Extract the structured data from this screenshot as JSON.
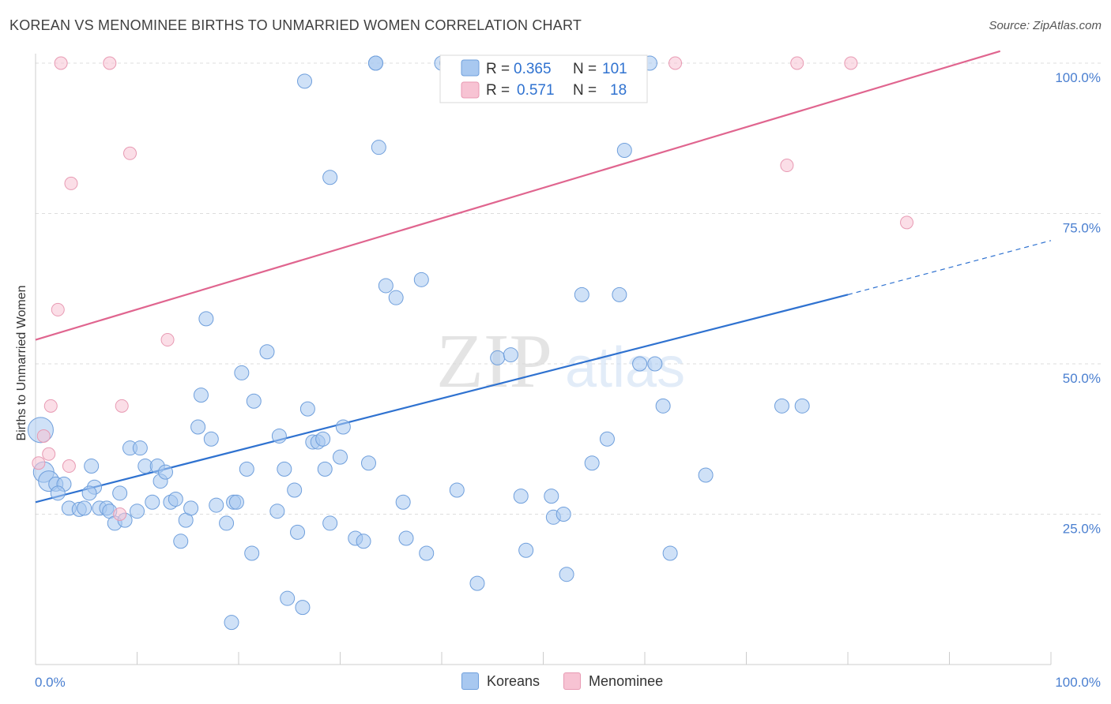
{
  "header": {
    "title": "KOREAN VS MENOMINEE BIRTHS TO UNMARRIED WOMEN CORRELATION CHART",
    "source": "Source: ZipAtlas.com"
  },
  "colors": {
    "koreans_fill": "#a8c8f0",
    "koreans_stroke": "#6f9fdc",
    "koreans_line": "#2f72d0",
    "menominee_fill": "#f7c3d3",
    "menominee_stroke": "#e89ab3",
    "menominee_line": "#e0658f",
    "axis_label": "#4a7fd0"
  },
  "legend": {
    "rows": [
      {
        "r_label": "R =",
        "r_value": "0.365",
        "n_label": "N =",
        "n_value": "101"
      },
      {
        "r_label": "R =",
        "r_value": "0.571",
        "n_label": "N =",
        "n_value": "18"
      }
    ],
    "bottom": [
      "Koreans",
      "Menominee"
    ]
  },
  "watermark": {
    "zip": "ZIP",
    "atlas": "atlas"
  },
  "chart_data": {
    "type": "scatter",
    "title": "KOREAN VS MENOMINEE BIRTHS TO UNMARRIED WOMEN CORRELATION CHART",
    "xlabel": "",
    "ylabel": "Births to Unmarried Women",
    "xlim": [
      0,
      100
    ],
    "ylim": [
      0,
      102
    ],
    "x_tick_labels": [
      "0.0%",
      "100.0%"
    ],
    "y_ticks": [
      25,
      50,
      75,
      100
    ],
    "y_tick_labels": [
      "25.0%",
      "50.0%",
      "75.0%",
      "100.0%"
    ],
    "grid": true,
    "legend_position": "top-center",
    "series": [
      {
        "name": "Koreans",
        "r": 0.365,
        "n": 101,
        "trend": {
          "x": [
            0,
            80
          ],
          "y": [
            27,
            61.5
          ],
          "dashed_to": [
            100,
            70.5
          ]
        },
        "points": [
          [
            0.5,
            39
          ],
          [
            0.8,
            32
          ],
          [
            1.3,
            30.5
          ],
          [
            2,
            30
          ],
          [
            2.8,
            30
          ],
          [
            2.2,
            28.5
          ],
          [
            3.3,
            26
          ],
          [
            4.3,
            25.8
          ],
          [
            4.8,
            26
          ],
          [
            5.5,
            33
          ],
          [
            5.8,
            29.5
          ],
          [
            5.3,
            28.5
          ],
          [
            6.3,
            26
          ],
          [
            7,
            26
          ],
          [
            7.3,
            25.5
          ],
          [
            7.8,
            23.5
          ],
          [
            8.3,
            28.5
          ],
          [
            8.8,
            24
          ],
          [
            9.3,
            36
          ],
          [
            10.3,
            36
          ],
          [
            10,
            25.5
          ],
          [
            10.8,
            33
          ],
          [
            12,
            33
          ],
          [
            12.3,
            30.5
          ],
          [
            12.8,
            32
          ],
          [
            11.5,
            27
          ],
          [
            13.3,
            27
          ],
          [
            13.8,
            27.5
          ],
          [
            14.3,
            20.5
          ],
          [
            14.8,
            24
          ],
          [
            15.3,
            26
          ],
          [
            16,
            39.5
          ],
          [
            16.3,
            44.8
          ],
          [
            16.8,
            57.5
          ],
          [
            17.3,
            37.5
          ],
          [
            17.8,
            26.5
          ],
          [
            18.8,
            23.5
          ],
          [
            19.3,
            7
          ],
          [
            19.5,
            27
          ],
          [
            19.8,
            27
          ],
          [
            20.3,
            48.5
          ],
          [
            20.8,
            32.5
          ],
          [
            21.3,
            18.5
          ],
          [
            21.5,
            43.8
          ],
          [
            22.8,
            52
          ],
          [
            23.8,
            25.5
          ],
          [
            24,
            38
          ],
          [
            24.5,
            32.5
          ],
          [
            24.8,
            11
          ],
          [
            25.5,
            29
          ],
          [
            25.8,
            22
          ],
          [
            26.3,
            9.5
          ],
          [
            26.8,
            42.5
          ],
          [
            27.3,
            37
          ],
          [
            27.8,
            37
          ],
          [
            28.3,
            37.5
          ],
          [
            28.5,
            32.5
          ],
          [
            29,
            23.5
          ],
          [
            30,
            34.5
          ],
          [
            30.3,
            39.5
          ],
          [
            31.5,
            21
          ],
          [
            32.3,
            20.5
          ],
          [
            32.8,
            33.5
          ],
          [
            33.5,
            100
          ],
          [
            33.8,
            86
          ],
          [
            34.5,
            63
          ],
          [
            35.5,
            61
          ],
          [
            36.2,
            27
          ],
          [
            36.5,
            21
          ],
          [
            38,
            64
          ],
          [
            38.5,
            18.5
          ],
          [
            40,
            100
          ],
          [
            40.5,
            100
          ],
          [
            41.5,
            29
          ],
          [
            43.5,
            13.5
          ],
          [
            45.5,
            51
          ],
          [
            46.8,
            51.5
          ],
          [
            47.8,
            28
          ],
          [
            48.3,
            19
          ],
          [
            50.8,
            28
          ],
          [
            51,
            24.5
          ],
          [
            52,
            25
          ],
          [
            52.3,
            15
          ],
          [
            53,
            100
          ],
          [
            53.5,
            100
          ],
          [
            53.8,
            61.5
          ],
          [
            54.8,
            33.5
          ],
          [
            56.3,
            37.5
          ],
          [
            57.5,
            61.5
          ],
          [
            58,
            85.5
          ],
          [
            59.5,
            50
          ],
          [
            60.5,
            100
          ],
          [
            61,
            50
          ],
          [
            61.8,
            43
          ],
          [
            62.5,
            18.5
          ],
          [
            66,
            31.5
          ],
          [
            73.5,
            43
          ],
          [
            75.5,
            43
          ],
          [
            26.5,
            97
          ],
          [
            29,
            81
          ],
          [
            33.5,
            100
          ]
        ]
      },
      {
        "name": "Menominee",
        "r": 0.571,
        "n": 18,
        "trend": {
          "x": [
            0,
            95
          ],
          "y": [
            54,
            102
          ]
        },
        "points": [
          [
            0.3,
            33.5
          ],
          [
            0.8,
            38
          ],
          [
            1.3,
            35
          ],
          [
            1.5,
            43
          ],
          [
            2.2,
            59
          ],
          [
            2.5,
            100
          ],
          [
            3.3,
            33
          ],
          [
            3.5,
            80
          ],
          [
            7.3,
            100
          ],
          [
            8.3,
            25
          ],
          [
            8.5,
            43
          ],
          [
            9.3,
            85
          ],
          [
            13,
            54
          ],
          [
            63,
            100
          ],
          [
            74,
            83
          ],
          [
            75,
            100
          ],
          [
            80.3,
            100
          ],
          [
            85.8,
            73.5
          ]
        ]
      }
    ]
  }
}
